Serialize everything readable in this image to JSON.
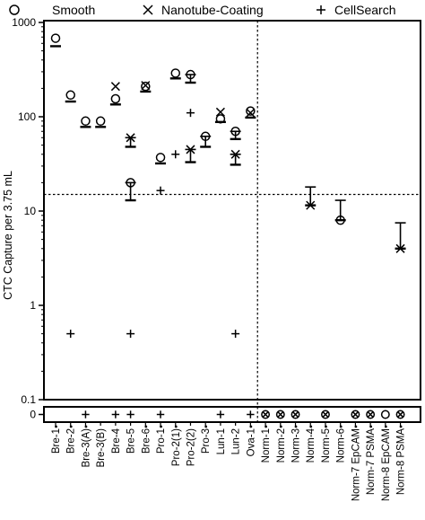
{
  "chart_data": {
    "type": "scatter",
    "ylabel": "CTC Capture per 3.75 mL",
    "yscale": "log",
    "ylim": [
      0.1,
      1000
    ],
    "yticks": [
      "1000",
      "100",
      "10",
      "1",
      "0.1"
    ],
    "zero_strip_label": "0",
    "threshold": 15,
    "legend": {
      "placement": "top",
      "entries": [
        {
          "key": "smooth",
          "symbol": "circle",
          "label": "Smooth"
        },
        {
          "key": "nanotube",
          "symbol": "x",
          "label": "Nanotube-Coating"
        },
        {
          "key": "cellsearch",
          "symbol": "plus",
          "label": "CellSearch"
        }
      ]
    },
    "categories": [
      "Bre-1",
      "Bre-2",
      "Bre-3(A)",
      "Bre-3(B)",
      "Bre-4",
      "Bre-5",
      "Bre-6",
      "Pro-1",
      "Pro-2(1)",
      "Pro-2(2)",
      "Pro-3",
      "Lun-1",
      "Lun-2",
      "Ova-1",
      "Norm-1",
      "Norm-2",
      "Norm-3",
      "Norm-4",
      "Norm-5",
      "Norm-6",
      "Norm-7 EpCAM",
      "Norm-7 PSMA",
      "Norm-8 EpCAM",
      "Norm-8 PSMA"
    ],
    "category_dots": [
      true,
      true,
      true,
      false,
      false,
      false,
      true,
      true,
      true,
      false,
      true,
      false,
      false,
      true,
      true,
      true,
      true,
      true,
      true,
      true,
      true,
      true,
      true,
      true
    ],
    "series": [
      {
        "key": "smooth",
        "name": "Smooth",
        "values": [
          680,
          170,
          90,
          90,
          155,
          20,
          210,
          37,
          290,
          280,
          62,
          95,
          70,
          115,
          null,
          null,
          null,
          null,
          null,
          8,
          null,
          null,
          null,
          null
        ]
      },
      {
        "key": "nanotube",
        "name": "Nanotube-Coating",
        "values": [
          null,
          null,
          null,
          null,
          210,
          60,
          215,
          null,
          null,
          45,
          null,
          112,
          40,
          110,
          null,
          null,
          null,
          11.5,
          null,
          null,
          null,
          null,
          null,
          4
        ]
      },
      {
        "key": "cellsearch",
        "name": "CellSearch",
        "values": [
          null,
          0.5,
          null,
          null,
          null,
          0.5,
          null,
          16.5,
          40,
          110,
          null,
          null,
          0.5,
          null,
          null,
          null,
          null,
          null,
          null,
          null,
          null,
          null,
          null,
          null
        ]
      }
    ],
    "error_bars": [
      {
        "category": 0,
        "mean": 560,
        "upper": null
      },
      {
        "category": 1,
        "mean": 145,
        "upper": null
      },
      {
        "category": 2,
        "mean": 78,
        "upper": null
      },
      {
        "category": 3,
        "mean": 78,
        "upper": null
      },
      {
        "category": 4,
        "mean": 135,
        "upper": null
      },
      {
        "category": 5,
        "mean": 13,
        "upper": 20
      },
      {
        "category": 5,
        "mean": 48,
        "upper": 60
      },
      {
        "category": 6,
        "mean": 185,
        "upper": null
      },
      {
        "category": 7,
        "mean": 32,
        "upper": null
      },
      {
        "category": 8,
        "mean": 255,
        "upper": null
      },
      {
        "category": 9,
        "mean": 33,
        "upper": 45
      },
      {
        "category": 9,
        "mean": 230,
        "upper": 280
      },
      {
        "category": 10,
        "mean": 48,
        "upper": 62
      },
      {
        "category": 11,
        "mean": 88,
        "upper": null
      },
      {
        "category": 12,
        "mean": 31,
        "upper": 40
      },
      {
        "category": 12,
        "mean": 58,
        "upper": 70
      },
      {
        "category": 13,
        "mean": 98,
        "upper": null
      },
      {
        "category": 17,
        "mean": 11.5,
        "upper": 18
      },
      {
        "category": 19,
        "mean": 8,
        "upper": 13
      },
      {
        "category": 23,
        "mean": 4,
        "upper": 7.5
      }
    ],
    "zero_strip": [
      "",
      "",
      "plus",
      "",
      "plus",
      "plus",
      "",
      "plus",
      "",
      "",
      "",
      "plus",
      "",
      "plus",
      "circle-x",
      "circle-x",
      "circle-x",
      "",
      "circle-x",
      "",
      "circle-x",
      "circle-x",
      "circle",
      "circle-x"
    ],
    "grid": false
  }
}
